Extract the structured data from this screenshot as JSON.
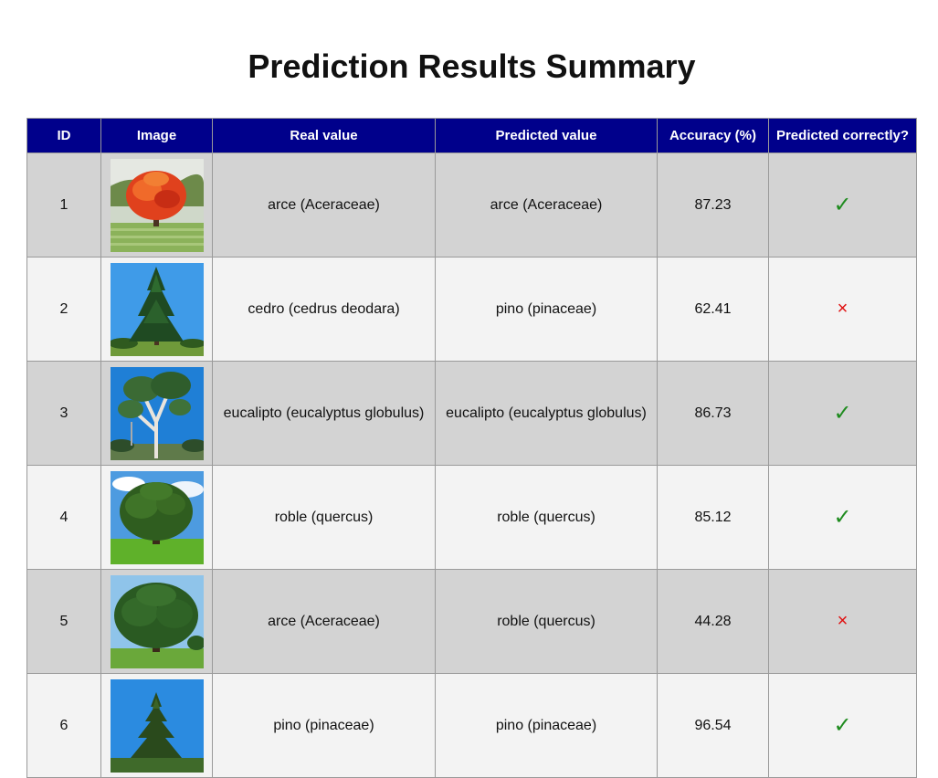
{
  "title": "Prediction Results Summary",
  "columns": [
    "ID",
    "Image",
    "Real value",
    "Predicted value",
    "Accuracy (%)",
    "Predicted correctly?"
  ],
  "rows": [
    {
      "id": "1",
      "image": "maple-tree-autumn",
      "real": "arce (Aceraceae)",
      "predicted": "arce (Aceraceae)",
      "accuracy": "87.23",
      "mark": "✓"
    },
    {
      "id": "2",
      "image": "cedar-tree",
      "real": "cedro (cedrus deodara)",
      "predicted": "pino (pinaceae)",
      "accuracy": "62.41",
      "mark": "×"
    },
    {
      "id": "3",
      "image": "eucalyptus-tree",
      "real": "eucalipto (eucalyptus globulus)",
      "predicted": "eucalipto (eucalyptus globulus)",
      "accuracy": "86.73",
      "mark": "✓"
    },
    {
      "id": "4",
      "image": "oak-tree",
      "real": "roble (quercus)",
      "predicted": "roble (quercus)",
      "accuracy": "85.12",
      "mark": "✓"
    },
    {
      "id": "5",
      "image": "broadleaf-tree",
      "real": "arce (Aceraceae)",
      "predicted": "roble (quercus)",
      "accuracy": "44.28",
      "mark": "×"
    },
    {
      "id": "6",
      "image": "pine-tree",
      "real": "pino (pinaceae)",
      "predicted": "pino (pinaceae)",
      "accuracy": "96.54",
      "mark": "✓"
    }
  ],
  "colors": {
    "header_bg": "#00008b",
    "row_odd": "#d3d3d3",
    "row_even": "#f3f3f3",
    "correct": "#1e8b1e",
    "incorrect": "#e01010"
  }
}
